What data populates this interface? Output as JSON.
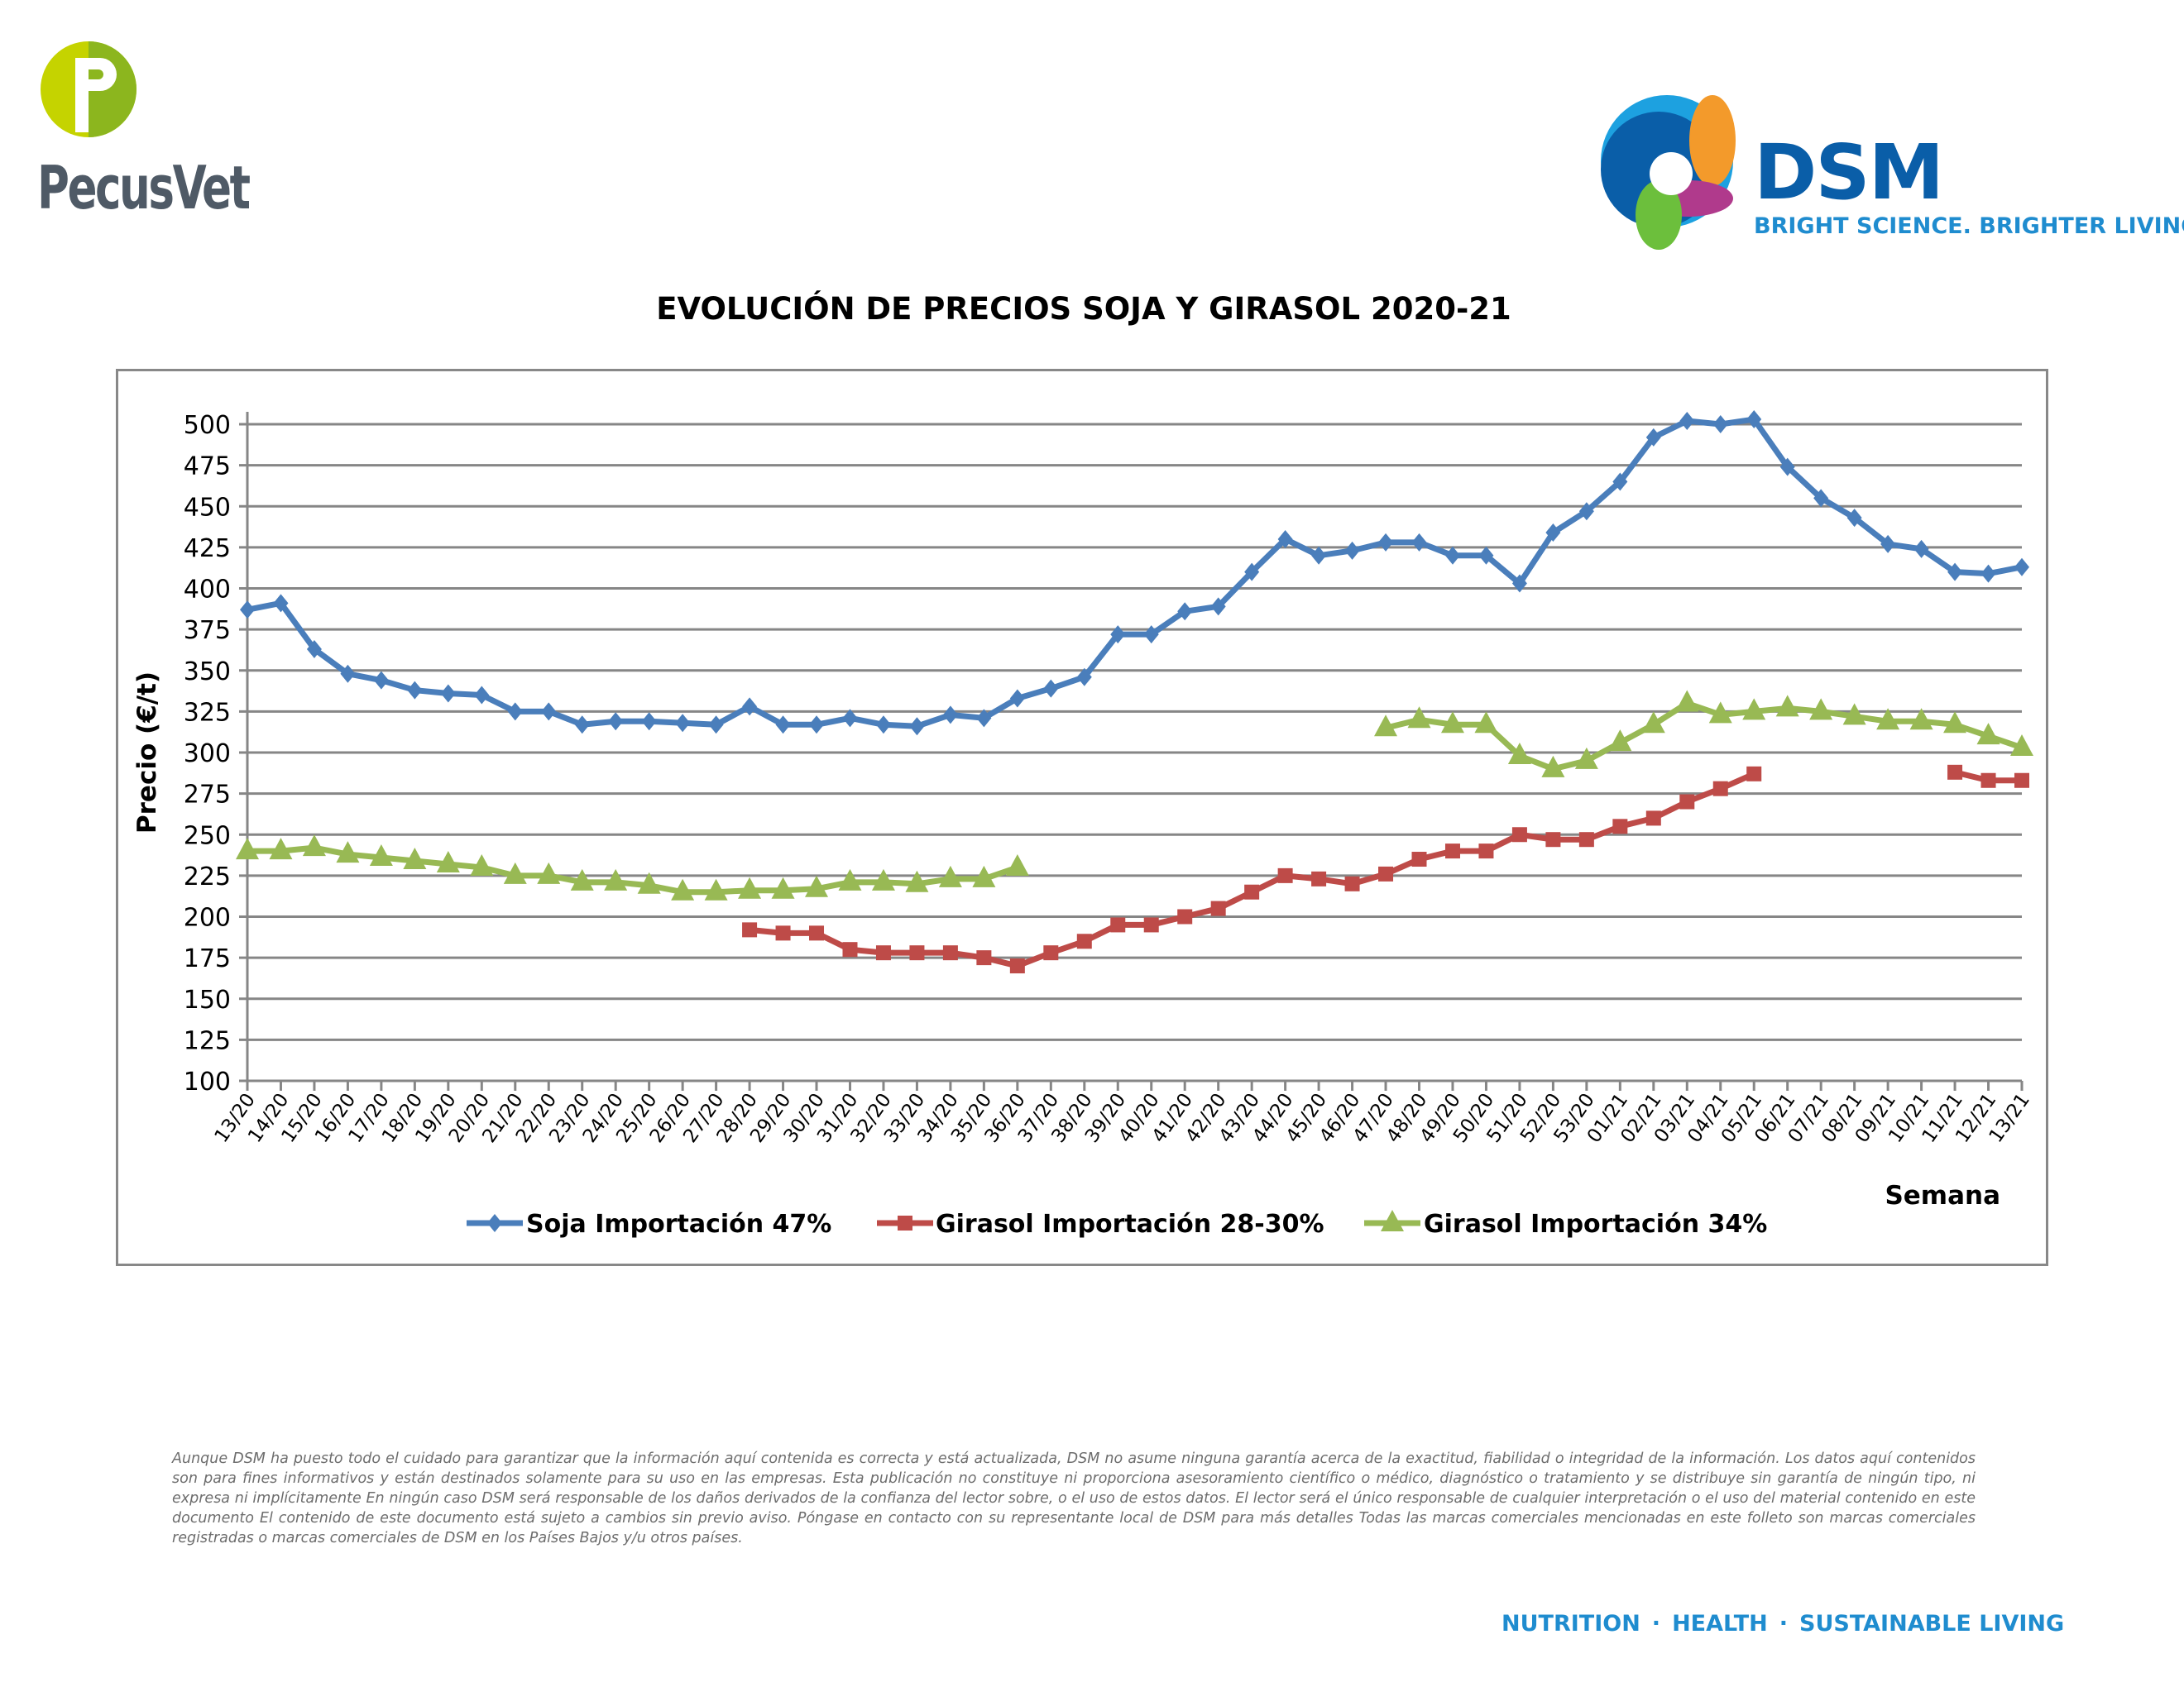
{
  "header": {
    "left_logo": "PecusVet",
    "right_logo": "DSM",
    "right_tagline": "BRIGHT SCIENCE. BRIGHTER LIVING."
  },
  "colors": {
    "soja": "#4a7ebb",
    "girasol_28": "#be4b48",
    "girasol_34": "#98b954",
    "grid": "#868686"
  },
  "chart_data": {
    "type": "line",
    "title": "EVOLUCIÓN DE PRECIOS SOJA Y GIRASOL 2020-21",
    "xlabel": "Semana",
    "ylabel": "Precio (€/t)",
    "ylim": [
      100,
      500
    ],
    "yticks": [
      100,
      125,
      150,
      175,
      200,
      225,
      250,
      275,
      300,
      325,
      350,
      375,
      400,
      425,
      450,
      475,
      500
    ],
    "grid": true,
    "legend_position": "bottom",
    "categories": [
      "13/20",
      "14/20",
      "15/20",
      "16/20",
      "17/20",
      "18/20",
      "19/20",
      "20/20",
      "21/20",
      "22/20",
      "23/20",
      "24/20",
      "25/20",
      "26/20",
      "27/20",
      "28/20",
      "29/20",
      "30/20",
      "31/20",
      "32/20",
      "33/20",
      "34/20",
      "35/20",
      "36/20",
      "37/20",
      "38/20",
      "39/20",
      "40/20",
      "41/20",
      "42/20",
      "43/20",
      "44/20",
      "45/20",
      "46/20",
      "47/20",
      "48/20",
      "49/20",
      "50/20",
      "51/20",
      "52/20",
      "53/20",
      "01/21",
      "02/21",
      "03/21",
      "04/21",
      "05/21",
      "06/21",
      "07/21",
      "08/21",
      "09/21",
      "10/21",
      "11/21",
      "12/21",
      "13/21"
    ],
    "series": [
      {
        "name": "Soja Importación 47%",
        "marker": "diamond",
        "values": [
          387,
          391,
          363,
          348,
          344,
          338,
          336,
          335,
          325,
          325,
          317,
          319,
          319,
          318,
          317,
          328,
          317,
          317,
          321,
          317,
          316,
          323,
          321,
          333,
          339,
          346,
          372,
          372,
          386,
          389,
          410,
          430,
          420,
          423,
          428,
          428,
          420,
          420,
          403,
          434,
          447,
          465,
          492,
          502,
          500,
          503,
          474,
          455,
          443,
          427,
          424,
          410,
          409,
          413
        ]
      },
      {
        "name": "Girasol Importación 28-30%",
        "marker": "square",
        "values": [
          null,
          null,
          null,
          null,
          null,
          null,
          null,
          null,
          null,
          null,
          null,
          null,
          null,
          null,
          null,
          192,
          190,
          190,
          180,
          178,
          178,
          178,
          175,
          170,
          178,
          185,
          195,
          195,
          200,
          205,
          215,
          225,
          223,
          220,
          226,
          235,
          240,
          240,
          250,
          247,
          247,
          255,
          260,
          270,
          278,
          287,
          null,
          null,
          null,
          null,
          null,
          288,
          283,
          283
        ]
      },
      {
        "name": "Girasol Importación 34%",
        "marker": "triangle",
        "values": [
          240,
          240,
          242,
          238,
          236,
          234,
          232,
          230,
          225,
          225,
          221,
          221,
          219,
          215,
          215,
          216,
          216,
          217,
          221,
          221,
          220,
          223,
          223,
          230,
          null,
          null,
          null,
          null,
          null,
          null,
          null,
          null,
          null,
          null,
          315,
          320,
          317,
          317,
          298,
          290,
          295,
          306,
          317,
          330,
          323,
          325,
          327,
          325,
          322,
          319,
          319,
          317,
          310,
          303
        ]
      }
    ]
  },
  "disclaimer": "Aunque DSM ha puesto todo el cuidado para garantizar que la información aquí contenida es correcta y está actualizada, DSM no asume ninguna garantía acerca de la exactitud, fiabilidad o integridad de la información. Los datos aquí contenidos son para fines informativos y están destinados solamente para su uso en las empresas. Esta publicación no constituye ni proporciona asesoramiento científico o médico, diagnóstico o tratamiento y se distribuye sin garantía de ningún tipo, ni expresa ni implícitamente En ningún caso DSM será responsable de los daños derivados de la confianza del lector sobre, o el uso de estos datos. El lector será el único responsable de cualquier interpretación o el uso del material contenido en este documento El contenido de este documento está sujeto a cambios sin previo aviso. Póngase en contacto con su representante local de DSM para más detalles Todas las marcas comerciales mencionadas en este folleto son marcas comerciales registradas o marcas comerciales de DSM en los Países Bajos y/u otros países.",
  "footer": {
    "items": [
      "NUTRITION",
      "HEALTH",
      "SUSTAINABLE LIVING"
    ]
  }
}
